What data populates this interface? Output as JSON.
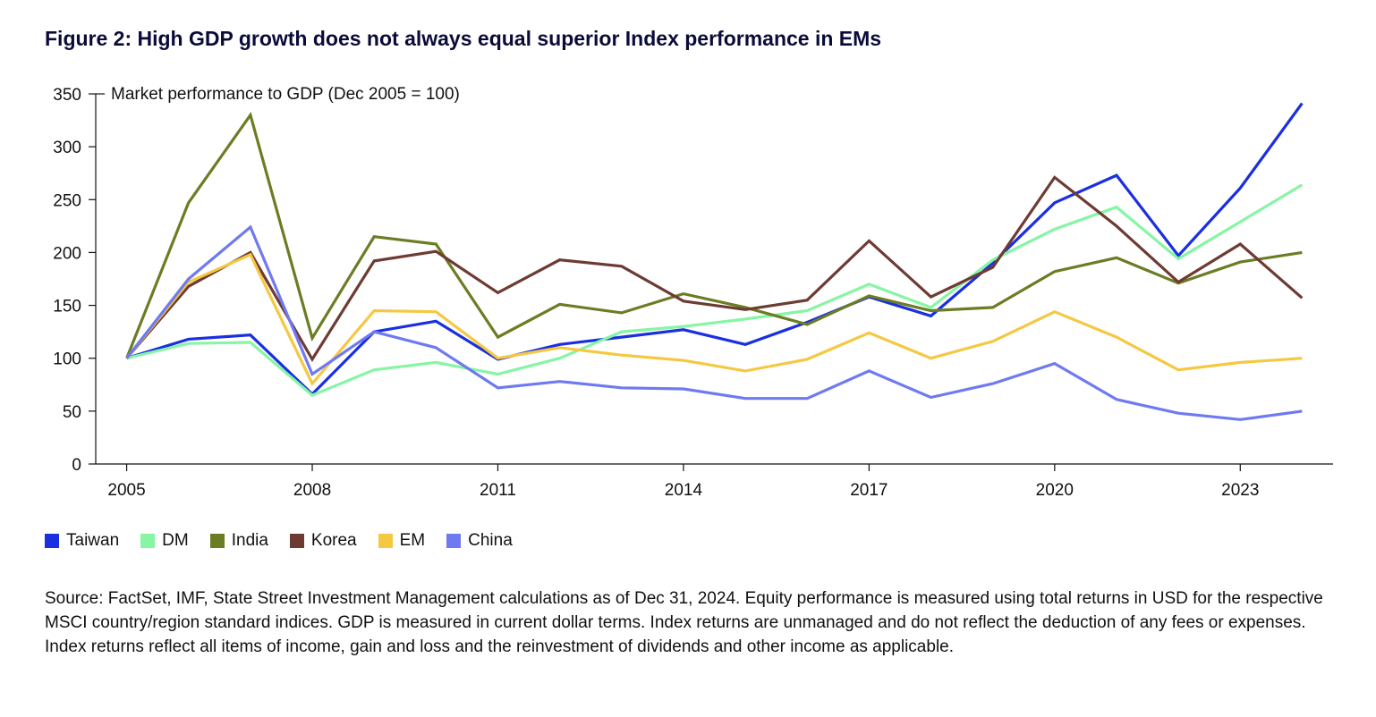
{
  "title": "Figure 2: High GDP growth does not always equal superior Index performance in EMs",
  "source": "Source: FactSet, IMF, State Street Investment Management calculations as of Dec 31, 2024. Equity performance is measured using total returns in USD for the respective MSCI country/region standard indices. GDP is measured in current dollar terms. Index returns are unmanaged and do not reflect the deduction of any fees or expenses. Index returns reflect all items of income, gain and loss and the reinvestment of dividends and other income as applicable.",
  "chart_data": {
    "type": "line",
    "ylabel": "Market performance to GDP (Dec 2005 = 100)",
    "xlabel": "",
    "x": [
      2005,
      2006,
      2007,
      2008,
      2009,
      2010,
      2011,
      2012,
      2013,
      2014,
      2015,
      2016,
      2017,
      2018,
      2019,
      2020,
      2021,
      2022,
      2023,
      2024
    ],
    "xticks": [
      2005,
      2008,
      2011,
      2014,
      2017,
      2020,
      2023
    ],
    "yticks": [
      0,
      50,
      100,
      150,
      200,
      250,
      300,
      350
    ],
    "ylim": [
      0,
      350
    ],
    "xlim": [
      2004.5,
      2024.5
    ],
    "grid": false,
    "legend": "bottom",
    "series": [
      {
        "name": "Taiwan",
        "color": "#1a2fe0",
        "values": [
          100,
          118,
          122,
          66,
          125,
          135,
          99,
          113,
          120,
          127,
          113,
          134,
          158,
          140,
          190,
          247,
          273,
          197,
          261,
          341
        ]
      },
      {
        "name": "DM",
        "color": "#86f5a4",
        "values": [
          100,
          114,
          115,
          65,
          89,
          96,
          85,
          100,
          125,
          130,
          137,
          145,
          170,
          148,
          193,
          222,
          243,
          194,
          229,
          264
        ]
      },
      {
        "name": "India",
        "color": "#6b7d24",
        "values": [
          100,
          247,
          330,
          119,
          215,
          208,
          120,
          151,
          143,
          161,
          148,
          132,
          159,
          145,
          148,
          182,
          195,
          171,
          191,
          200
        ]
      },
      {
        "name": "Korea",
        "color": "#6e3b33",
        "values": [
          100,
          168,
          200,
          99,
          192,
          201,
          162,
          193,
          187,
          154,
          146,
          155,
          211,
          158,
          186,
          271,
          225,
          172,
          208,
          157
        ]
      },
      {
        "name": "EM",
        "color": "#f5c842",
        "values": [
          100,
          172,
          198,
          76,
          145,
          144,
          100,
          110,
          103,
          98,
          88,
          99,
          124,
          100,
          116,
          144,
          120,
          89,
          96,
          100
        ]
      },
      {
        "name": "China",
        "color": "#6f7af0",
        "values": [
          100,
          175,
          224,
          85,
          125,
          110,
          72,
          78,
          72,
          71,
          62,
          62,
          88,
          63,
          76,
          95,
          61,
          48,
          42,
          50
        ]
      }
    ]
  }
}
